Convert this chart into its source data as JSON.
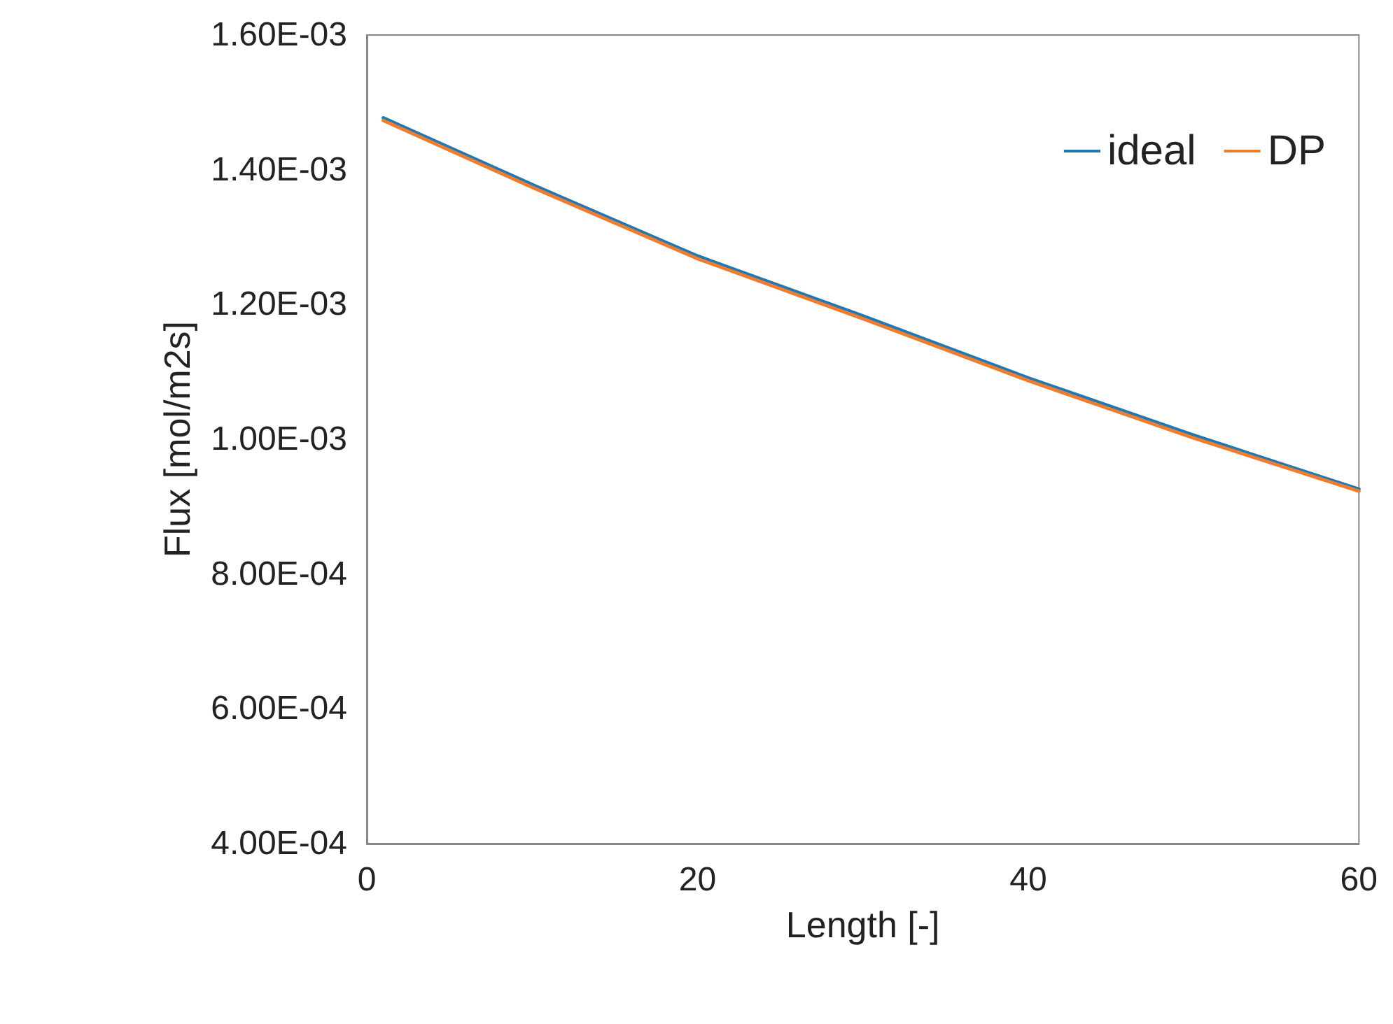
{
  "chart_data": {
    "type": "line",
    "xlabel": "Length [-]",
    "ylabel": "Flux [mol/m2s]",
    "x": [
      1,
      10,
      20,
      30,
      40,
      50,
      60
    ],
    "series": [
      {
        "name": "ideal",
        "color": "#1f77b4",
        "values": [
          0.001477,
          0.001378,
          0.001272,
          0.001183,
          0.001091,
          0.001006,
          0.000926
        ]
      },
      {
        "name": "DP",
        "color": "#ed7d31",
        "values": [
          0.001473,
          0.001374,
          0.001268,
          0.001179,
          0.001087,
          0.001002,
          0.000923
        ]
      }
    ],
    "xlim": [
      0,
      60
    ],
    "xticks": [
      0,
      20,
      40,
      60
    ],
    "ylim": [
      0.0004,
      0.0016
    ],
    "yticks": [
      {
        "value": 0.0004,
        "label": "4.00E-04"
      },
      {
        "value": 0.0006,
        "label": "6.00E-04"
      },
      {
        "value": 0.0008,
        "label": "8.00E-04"
      },
      {
        "value": 0.001,
        "label": "1.00E-03"
      },
      {
        "value": 0.0012,
        "label": "1.20E-03"
      },
      {
        "value": 0.0014,
        "label": "1.40E-03"
      },
      {
        "value": 0.0016,
        "label": "1.60E-03"
      }
    ],
    "grid": false,
    "legend": "top right",
    "marker": "none",
    "line_style": "solid"
  }
}
